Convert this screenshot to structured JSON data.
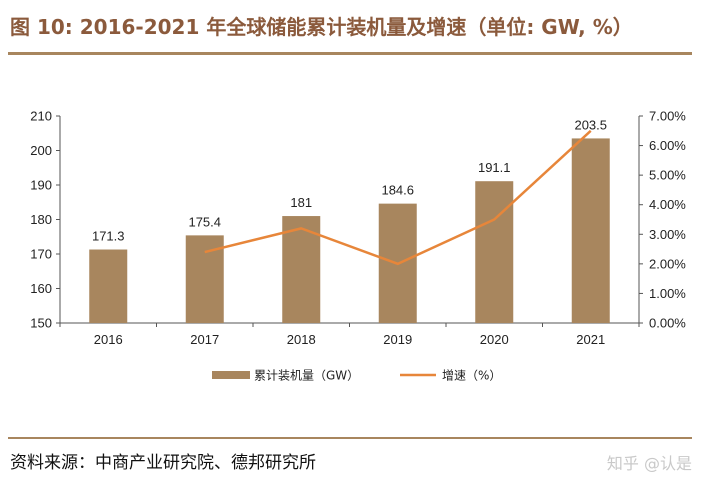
{
  "header": {
    "title": "图 10: 2016-2021 年全球储能累计装机量及增速（单位: GW, %）"
  },
  "footer": {
    "source": "资料来源：中商产业研究院、德邦研究所",
    "watermark": "知乎 @认是"
  },
  "colors": {
    "bar": "#a8865e",
    "line": "#e7863a",
    "title": "#8b5a3c",
    "rule": "#a8865e"
  },
  "chart_data": {
    "type": "bar",
    "categories": [
      "2016",
      "2017",
      "2018",
      "2019",
      "2020",
      "2021"
    ],
    "series": [
      {
        "name": "累计装机量（GW）",
        "type": "bar",
        "axis": "left",
        "values": [
          171.3,
          175.4,
          181,
          184.6,
          191.1,
          203.5
        ],
        "data_labels": [
          "171.3",
          "175.4",
          "181",
          "184.6",
          "191.1",
          "203.5"
        ]
      },
      {
        "name": "增速（%）",
        "type": "line",
        "axis": "right",
        "values": [
          null,
          2.4,
          3.2,
          2.0,
          3.5,
          6.5
        ]
      }
    ],
    "y_left": {
      "range": [
        150,
        210
      ],
      "ticks": [
        "150",
        "160",
        "170",
        "180",
        "190",
        "200",
        "210"
      ]
    },
    "y_right": {
      "range": [
        0,
        7
      ],
      "unit": "%",
      "ticks": [
        "0.00%",
        "1.00%",
        "2.00%",
        "3.00%",
        "4.00%",
        "5.00%",
        "6.00%",
        "7.00%"
      ]
    },
    "grid": false,
    "legend": "bottom"
  }
}
